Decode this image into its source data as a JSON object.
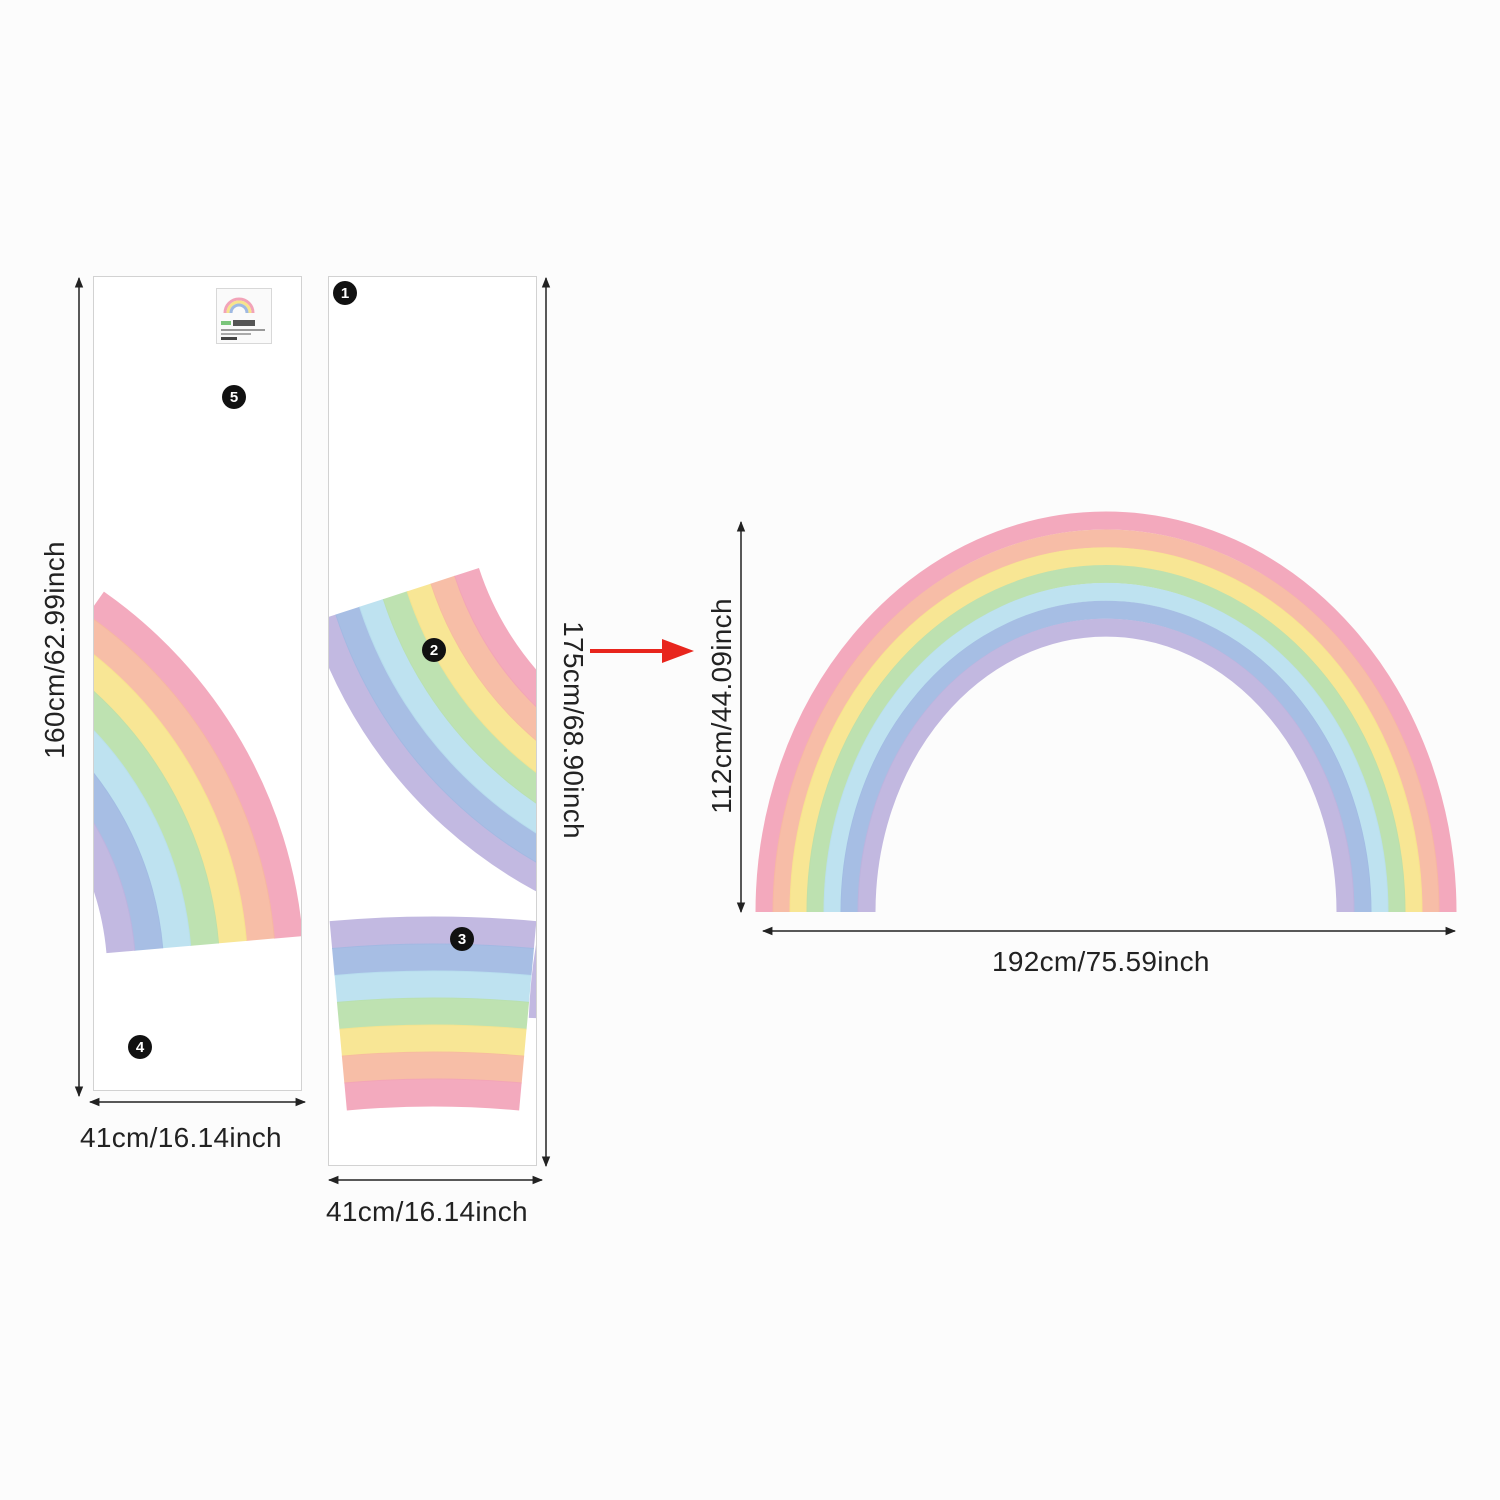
{
  "pieces": [
    {
      "number": "5"
    },
    {
      "number": "4"
    },
    {
      "number": "1"
    },
    {
      "number": "2"
    },
    {
      "number": "3"
    }
  ],
  "dimensions": {
    "sheet_a_height": "160cm/62.99inch",
    "sheet_a_width": "41cm/16.14inch",
    "sheet_b_height": "175cm/68.90inch",
    "sheet_b_width": "41cm/16.14inch",
    "rainbow_height": "112cm/44.09inch",
    "rainbow_width": "192cm/75.59inch"
  },
  "colors": {
    "bands_outer_to_inner": [
      "#f2a3b8",
      "#f6b8a0",
      "#f7e48c",
      "#b8dfaa",
      "#b9e0ef",
      "#9fb9e2",
      "#bdb3de"
    ],
    "arrow": "#e8251d"
  },
  "icons": {
    "arrow": "red-right-arrow-icon"
  }
}
